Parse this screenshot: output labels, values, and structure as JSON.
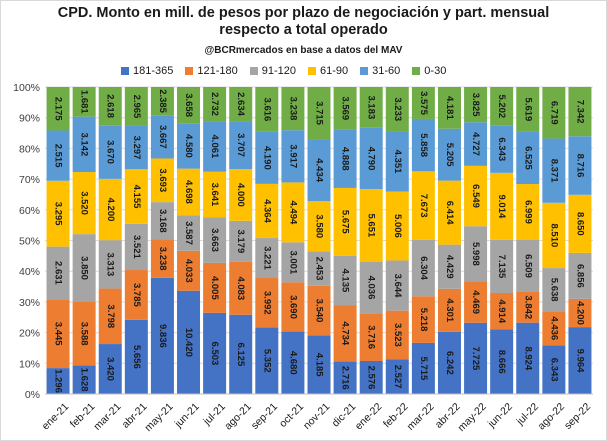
{
  "chart_data": {
    "type": "bar",
    "stacked": true,
    "percent_stacked": true,
    "title_line1": "CPD. Monto en mill. de pesos por plazo de negociación y part. mensual",
    "title_line2": "respecto a total operado",
    "subtitle": "@BCRmercados en base a datos del MAV",
    "legend_position": "top",
    "grid": true,
    "ylim": [
      0,
      100
    ],
    "y_ticks": [
      "0%",
      "10%",
      "20%",
      "30%",
      "40%",
      "50%",
      "60%",
      "70%",
      "80%",
      "90%",
      "100%"
    ],
    "categories": [
      "ene-21",
      "feb-21",
      "mar-21",
      "abr-21",
      "may-21",
      "jun-21",
      "jul-21",
      "ago-21",
      "sep-21",
      "oct-21",
      "nov-21",
      "dic-21",
      "ene-22",
      "feb-22",
      "mar-22",
      "abr-22",
      "may-22",
      "jun-22",
      "jul-22",
      "ago-22",
      "sep-22"
    ],
    "series": [
      {
        "name": "181-365",
        "color": "#4472c4",
        "values": [
          1.296,
          1.628,
          3.42,
          5.656,
          9.836,
          10.42,
          6.503,
          6.125,
          5.352,
          4.68,
          4.185,
          2.716,
          2.576,
          2.527,
          5.715,
          6.242,
          7.725,
          8.666,
          8.924,
          6.343,
          9.964
        ],
        "labels": [
          "1.296",
          "1.628",
          "3.420",
          "5.656",
          "9.836",
          "10.420",
          "6.503",
          "6.125",
          "5.352",
          "4.680",
          "4.185",
          "2.716",
          "2.576",
          "2.527",
          "5.715",
          "6.242",
          "7.725",
          "8.666",
          "8.924",
          "6.343",
          "9.964"
        ]
      },
      {
        "name": "121-180",
        "color": "#ed7d31",
        "values": [
          3.445,
          3.588,
          3.798,
          3.785,
          3.238,
          4.033,
          4.005,
          4.083,
          3.992,
          3.69,
          3.54,
          4.734,
          3.716,
          3.523,
          5.218,
          4.301,
          4.469,
          4.914,
          3.842,
          4.436,
          4.2
        ],
        "labels": [
          "3.445",
          "3.588",
          "3.798",
          "3.785",
          "3.238",
          "4.033",
          "4.005",
          "4.083",
          "3.992",
          "3.690",
          "3.540",
          "4.734",
          "3.716",
          "3.523",
          "5.218",
          "4.301",
          "4.469",
          "4.914",
          "3.842",
          "4.436",
          "4.200"
        ]
      },
      {
        "name": "91-120",
        "color": "#a5a5a5",
        "values": [
          2.631,
          3.85,
          3.313,
          3.521,
          3.168,
          3.587,
          3.663,
          3.179,
          3.221,
          3.001,
          2.453,
          4.135,
          4.036,
          3.644,
          6.304,
          4.429,
          5.998,
          7.135,
          6.509,
          5.638,
          6.856
        ],
        "labels": [
          "2.631",
          "3.850",
          "3.313",
          "3.521",
          "3.168",
          "3.587",
          "3.663",
          "3.179",
          "3.221",
          "3.001",
          "2.453",
          "4.135",
          "4.036",
          "3.644",
          "6.304",
          "4.429",
          "5.998",
          "7.135",
          "6.509",
          "5.638",
          "6.856"
        ]
      },
      {
        "name": "61-90",
        "color": "#ffc000",
        "values": [
          3.295,
          3.52,
          4.2,
          4.155,
          3.693,
          4.698,
          3.641,
          4.0,
          4.364,
          4.494,
          3.58,
          5.675,
          5.651,
          5.006,
          7.673,
          6.414,
          6.549,
          9.014,
          6.999,
          8.51,
          8.65
        ],
        "labels": [
          "3.295",
          "3.520",
          "4.200",
          "4.155",
          "3.693",
          "4.698",
          "3.641",
          "4.000",
          "4.364",
          "4.494",
          "3.580",
          "5.675",
          "5.651",
          "5.006",
          "7.673",
          "6.414",
          "6.549",
          "9.014",
          "6.999",
          "8.510",
          "8.650"
        ]
      },
      {
        "name": "31-60",
        "color": "#5b9bd5",
        "values": [
          2.515,
          3.142,
          3.67,
          3.297,
          3.667,
          4.58,
          4.061,
          3.707,
          4.19,
          3.917,
          4.434,
          4.888,
          4.79,
          4.351,
          5.858,
          5.205,
          4.727,
          6.343,
          6.525,
          8.371,
          8.716
        ],
        "labels": [
          "2.515",
          "3.142",
          "3.670",
          "3.297",
          "3.667",
          "4.580",
          "4.061",
          "3.707",
          "4.190",
          "3.917",
          "4.434",
          "4.888",
          "4.790",
          "4.351",
          "5.858",
          "5.205",
          "4.727",
          "6.343",
          "6.525",
          "8.371",
          "8.716"
        ]
      },
      {
        "name": "0-30",
        "color": "#70ad47",
        "values": [
          2.175,
          1.681,
          2.618,
          2.965,
          2.385,
          3.658,
          2.732,
          2.634,
          3.616,
          3.238,
          3.715,
          3.569,
          3.183,
          3.233,
          3.575,
          4.181,
          3.825,
          5.202,
          5.619,
          6.719,
          7.342
        ],
        "labels": [
          "2.175",
          "1.681",
          "2.618",
          "2.965",
          "2.385",
          "3.658",
          "2.732",
          "2.634",
          "3.616",
          "3.238",
          "3.715",
          "3.569",
          "3.183",
          "3.233",
          "3.575",
          "4.181",
          "3.825",
          "5.202",
          "5.619",
          "6.719",
          "7.342"
        ]
      }
    ]
  }
}
